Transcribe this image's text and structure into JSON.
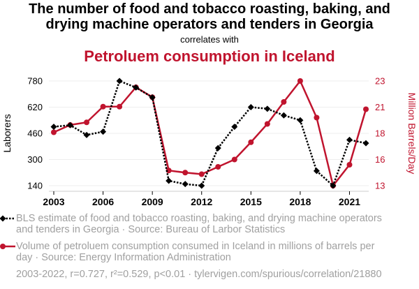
{
  "header": {
    "title_line1": "The number of food and tobacco roasting, baking, and",
    "title_line2": "drying machine operators and tenders in Georgia",
    "subtitle": "correlates with",
    "title2": "Petroluem consumption in Iceland"
  },
  "colors": {
    "series1": "#000000",
    "series2": "#c0142e",
    "grid": "#eeeeee",
    "legend_text": "#a0a0a0"
  },
  "legend": {
    "series1_text": "BLS estimate of food and tobacco roasting, baking, and drying machine operators and tenders in Georgia · Source: Bureau of Larbor Statistics",
    "series2_text": "Volume of petroluem consumption consumed in Iceland in millions of barrels per day · Source: Energy Information Administration"
  },
  "footer": "2003-2022, r=0.727, r²=0.529, p<0.01 · tylervigen.com/spurious/correlation/21880",
  "chart_data": {
    "type": "line",
    "title": "The number of food and tobacco roasting, baking, and drying machine operators and tenders in Georgia correlates with Petroluem consumption in Iceland",
    "x": [
      2003,
      2004,
      2005,
      2006,
      2007,
      2008,
      2009,
      2010,
      2011,
      2012,
      2013,
      2014,
      2015,
      2016,
      2017,
      2018,
      2019,
      2020,
      2021,
      2022
    ],
    "xlim": [
      2003,
      2022
    ],
    "x_ticks": [
      "2003",
      "2006",
      "2009",
      "2012",
      "2015",
      "2018",
      "2021"
    ],
    "x_tick_values": [
      2003,
      2006,
      2009,
      2012,
      2015,
      2018,
      2021
    ],
    "ylabel_left": "Laborers",
    "ylim_left": [
      140,
      780
    ],
    "y_ticks_left": [
      "780",
      "620",
      "460",
      "300",
      "140"
    ],
    "y_tick_values_left": [
      780,
      620,
      460,
      300,
      140
    ],
    "ylabel_right": "Million Barrels/Day",
    "ylim_right": [
      13,
      23
    ],
    "y_ticks_right": [
      "23",
      "21",
      "18",
      "16",
      "13"
    ],
    "y_tick_values_right": [
      23,
      20.5,
      18,
      15.5,
      13
    ],
    "grid": true,
    "legend_position": "bottom",
    "series": [
      {
        "name": "BLS estimate of food and tobacco roasting, baking, and drying machine operators and tenders in Georgia",
        "axis": "left",
        "style": "dotted",
        "marker": "diamond",
        "values": [
          500,
          510,
          450,
          470,
          780,
          740,
          680,
          170,
          150,
          140,
          370,
          500,
          620,
          610,
          570,
          540,
          230,
          140,
          420,
          400
        ]
      },
      {
        "name": "Volume of petroluem consumption consumed in Iceland in millions of barrels per day",
        "axis": "right",
        "style": "solid",
        "marker": "circle",
        "values": [
          18.1,
          18.8,
          19.05,
          20.55,
          20.55,
          22.4,
          21.45,
          14.45,
          14.25,
          14.1,
          14.8,
          15.5,
          17.15,
          18.9,
          21.0,
          23.0,
          19.5,
          13.0,
          15.0,
          20.3
        ]
      }
    ]
  }
}
